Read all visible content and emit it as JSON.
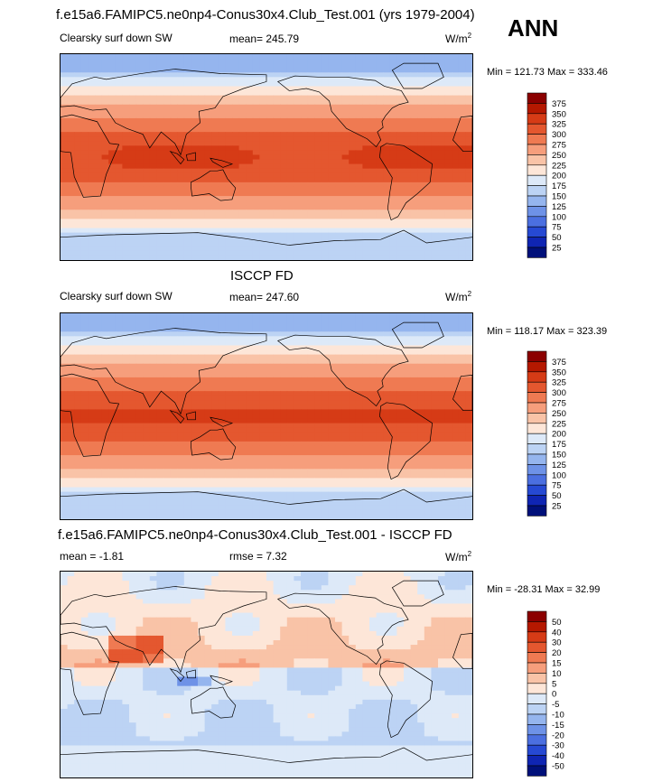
{
  "header": {
    "title": "f.e15a6.FAMIPC5.ne0np4-Conus30x4.Club_Test.001 (yrs 1979-2004)",
    "season": "ANN"
  },
  "panels": [
    {
      "section_title": "",
      "left_label": "Clearsky surf down SW",
      "center_label": "mean= 245.79",
      "unit_main": "W/m",
      "unit_sup": "2",
      "min_max": "Min = 121.73 Max = 333.46"
    },
    {
      "section_title": "ISCCP FD",
      "left_label": "Clearsky surf down SW",
      "center_label": "mean= 247.60",
      "unit_main": "W/m",
      "unit_sup": "2",
      "min_max": "Min = 118.17 Max = 323.39"
    },
    {
      "section_title": "f.e15a6.FAMIPC5.ne0np4-Conus30x4.Club_Test.001 - ISCCP FD",
      "left_label": "mean =  -1.81",
      "center_label": "rmse =   7.32",
      "unit_main": "W/m",
      "unit_sup": "2",
      "min_max": "Min = -28.31 Max =  32.99"
    }
  ],
  "chart_data": [
    {
      "type": "heatmap",
      "title": "Clearsky surf down SW",
      "map_field": "model",
      "colorbar_levels": [
        "375",
        "350",
        "325",
        "300",
        "275",
        "250",
        "225",
        "200",
        "175",
        "150",
        "125",
        "100",
        "75",
        "50",
        "25"
      ],
      "colorbar_colors": [
        "#8b0000",
        "#b51800",
        "#d63b16",
        "#e4572f",
        "#ef7a52",
        "#f69e7c",
        "#f9c3a7",
        "#fde6d8",
        "#dde9f8",
        "#bcd3f4",
        "#95b5ee",
        "#6e92e7",
        "#4b6fe0",
        "#2649d3",
        "#0f25b3",
        "#00107a"
      ],
      "mean": 245.79,
      "min": 121.73,
      "max": 333.46
    },
    {
      "type": "heatmap",
      "title": "ISCCP FD",
      "map_field": "obs",
      "colorbar_levels": [
        "375",
        "350",
        "325",
        "300",
        "275",
        "250",
        "225",
        "200",
        "175",
        "150",
        "125",
        "100",
        "75",
        "50",
        "25"
      ],
      "colorbar_colors": [
        "#8b0000",
        "#b51800",
        "#d63b16",
        "#e4572f",
        "#ef7a52",
        "#f69e7c",
        "#f9c3a7",
        "#fde6d8",
        "#dde9f8",
        "#bcd3f4",
        "#95b5ee",
        "#6e92e7",
        "#4b6fe0",
        "#2649d3",
        "#0f25b3",
        "#00107a"
      ],
      "mean": 247.6,
      "min": 118.17,
      "max": 323.39
    },
    {
      "type": "heatmap",
      "title": "f.e15a6.FAMIPC5.ne0np4-Conus30x4.Club_Test.001 - ISCCP FD",
      "map_field": "diff",
      "colorbar_levels": [
        "50",
        "40",
        "30",
        "20",
        "15",
        "10",
        "5",
        "0",
        "-5",
        "-10",
        "-15",
        "-20",
        "-30",
        "-40",
        "-50"
      ],
      "colorbar_colors": [
        "#8b0000",
        "#b51800",
        "#d63b16",
        "#e4572f",
        "#ef7a52",
        "#f69e7c",
        "#f9c3a7",
        "#fde6d8",
        "#dde9f8",
        "#bcd3f4",
        "#95b5ee",
        "#6e92e7",
        "#4b6fe0",
        "#2649d3",
        "#0f25b3",
        "#00107a"
      ],
      "mean": -1.81,
      "rmse": 7.32,
      "min": -28.31,
      "max": 32.99
    }
  ]
}
